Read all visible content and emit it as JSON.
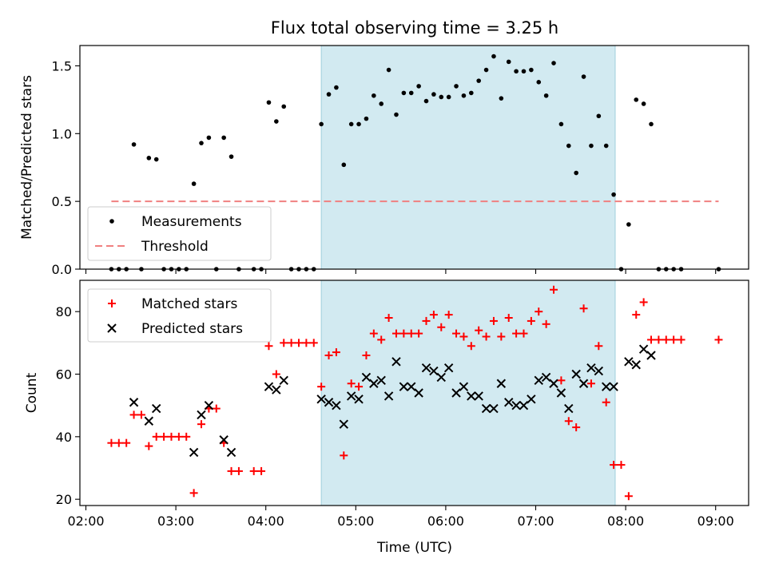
{
  "chart_data": [
    {
      "type": "scatter",
      "title": "Flux total observing time = 3.25 h",
      "xlabel": "",
      "ylabel": "Matched/Predicted stars",
      "xlim": [
        "01:56",
        "09:22"
      ],
      "ylim": [
        0,
        1.65
      ],
      "x_ticks": [
        "02:00",
        "03:00",
        "04:00",
        "05:00",
        "06:00",
        "07:00",
        "08:00",
        "09:00"
      ],
      "y_ticks": [
        0.0,
        0.5,
        1.0,
        1.5
      ],
      "y_tick_labels": [
        "0.0",
        "0.5",
        "1.0",
        "1.5"
      ],
      "shaded_interval": [
        "04:37",
        "07:53"
      ],
      "legend": {
        "position": "lower-left",
        "entries": [
          "Measurements",
          "Threshold"
        ]
      },
      "series": [
        {
          "name": "Measurements",
          "marker": "dot",
          "color": "#000000",
          "points": [
            [
              "02:17",
              0
            ],
            [
              "02:22",
              0
            ],
            [
              "02:27",
              0
            ],
            [
              "02:32",
              0.92
            ],
            [
              "02:37",
              0
            ],
            [
              "02:42",
              0.82
            ],
            [
              "02:47",
              0.81
            ],
            [
              "02:52",
              0
            ],
            [
              "02:57",
              0
            ],
            [
              "03:02",
              0
            ],
            [
              "03:07",
              0
            ],
            [
              "03:12",
              0.63
            ],
            [
              "03:17",
              0.93
            ],
            [
              "03:22",
              0.97
            ],
            [
              "03:27",
              0
            ],
            [
              "03:32",
              0.97
            ],
            [
              "03:37",
              0.83
            ],
            [
              "03:42",
              0
            ],
            [
              "03:52",
              0
            ],
            [
              "03:57",
              0
            ],
            [
              "04:02",
              1.23
            ],
            [
              "04:07",
              1.09
            ],
            [
              "04:12",
              1.2
            ],
            [
              "04:17",
              0
            ],
            [
              "04:22",
              0
            ],
            [
              "04:27",
              0
            ],
            [
              "04:32",
              0
            ],
            [
              "04:37",
              1.07
            ],
            [
              "04:42",
              1.29
            ],
            [
              "04:47",
              1.34
            ],
            [
              "04:52",
              0.77
            ],
            [
              "04:57",
              1.07
            ],
            [
              "05:02",
              1.07
            ],
            [
              "05:07",
              1.11
            ],
            [
              "05:12",
              1.28
            ],
            [
              "05:17",
              1.22
            ],
            [
              "05:22",
              1.47
            ],
            [
              "05:27",
              1.14
            ],
            [
              "05:32",
              1.3
            ],
            [
              "05:37",
              1.3
            ],
            [
              "05:42",
              1.35
            ],
            [
              "05:47",
              1.24
            ],
            [
              "05:52",
              1.29
            ],
            [
              "05:57",
              1.27
            ],
            [
              "06:02",
              1.27
            ],
            [
              "06:07",
              1.35
            ],
            [
              "06:12",
              1.28
            ],
            [
              "06:17",
              1.3
            ],
            [
              "06:22",
              1.39
            ],
            [
              "06:27",
              1.47
            ],
            [
              "06:32",
              1.57
            ],
            [
              "06:37",
              1.26
            ],
            [
              "06:42",
              1.53
            ],
            [
              "06:47",
              1.46
            ],
            [
              "06:52",
              1.46
            ],
            [
              "06:57",
              1.47
            ],
            [
              "07:02",
              1.38
            ],
            [
              "07:07",
              1.28
            ],
            [
              "07:12",
              1.52
            ],
            [
              "07:17",
              1.07
            ],
            [
              "07:22",
              0.91
            ],
            [
              "07:27",
              0.71
            ],
            [
              "07:32",
              1.42
            ],
            [
              "07:37",
              0.91
            ],
            [
              "07:42",
              1.13
            ],
            [
              "07:47",
              0.91
            ],
            [
              "07:52",
              0.55
            ],
            [
              "07:57",
              0
            ],
            [
              "08:02",
              0.33
            ],
            [
              "08:07",
              1.25
            ],
            [
              "08:12",
              1.22
            ],
            [
              "08:17",
              1.07
            ],
            [
              "08:22",
              0
            ],
            [
              "08:27",
              0
            ],
            [
              "08:32",
              0
            ],
            [
              "08:37",
              0
            ],
            [
              "09:02",
              0
            ]
          ]
        },
        {
          "name": "Threshold",
          "style": "dashed",
          "color": "#f08080",
          "points": [
            [
              "02:17",
              0.5
            ],
            [
              "09:02",
              0.5
            ]
          ]
        }
      ]
    },
    {
      "type": "scatter",
      "title": "",
      "xlabel": "Time (UTC)",
      "ylabel": "Count",
      "xlim": [
        "01:56",
        "09:22"
      ],
      "ylim": [
        18,
        90
      ],
      "x_ticks": [
        "02:00",
        "03:00",
        "04:00",
        "05:00",
        "06:00",
        "07:00",
        "08:00",
        "09:00"
      ],
      "y_ticks": [
        20,
        40,
        60,
        80
      ],
      "y_tick_labels": [
        "20",
        "40",
        "60",
        "80"
      ],
      "shaded_interval": [
        "04:37",
        "07:53"
      ],
      "legend": {
        "position": "upper-left",
        "entries": [
          "Matched stars",
          "Predicted stars"
        ]
      },
      "series": [
        {
          "name": "Matched stars",
          "marker": "plus",
          "color": "#ff0000",
          "points": [
            [
              "02:17",
              38
            ],
            [
              "02:22",
              38
            ],
            [
              "02:27",
              38
            ],
            [
              "02:32",
              47
            ],
            [
              "02:37",
              47
            ],
            [
              "02:42",
              37
            ],
            [
              "02:47",
              40
            ],
            [
              "02:52",
              40
            ],
            [
              "02:57",
              40
            ],
            [
              "03:02",
              40
            ],
            [
              "03:07",
              40
            ],
            [
              "03:12",
              22
            ],
            [
              "03:17",
              44
            ],
            [
              "03:22",
              49
            ],
            [
              "03:27",
              49
            ],
            [
              "03:32",
              38
            ],
            [
              "03:37",
              29
            ],
            [
              "03:42",
              29
            ],
            [
              "03:52",
              29
            ],
            [
              "03:57",
              29
            ],
            [
              "04:02",
              69
            ],
            [
              "04:07",
              60
            ],
            [
              "04:12",
              70
            ],
            [
              "04:17",
              70
            ],
            [
              "04:22",
              70
            ],
            [
              "04:27",
              70
            ],
            [
              "04:32",
              70
            ],
            [
              "04:37",
              56
            ],
            [
              "04:42",
              66
            ],
            [
              "04:47",
              67
            ],
            [
              "04:52",
              34
            ],
            [
              "04:57",
              57
            ],
            [
              "05:02",
              56
            ],
            [
              "05:07",
              66
            ],
            [
              "05:12",
              73
            ],
            [
              "05:17",
              71
            ],
            [
              "05:22",
              78
            ],
            [
              "05:27",
              73
            ],
            [
              "05:32",
              73
            ],
            [
              "05:37",
              73
            ],
            [
              "05:42",
              73
            ],
            [
              "05:47",
              77
            ],
            [
              "05:52",
              79
            ],
            [
              "05:57",
              75
            ],
            [
              "06:02",
              79
            ],
            [
              "06:07",
              73
            ],
            [
              "06:12",
              72
            ],
            [
              "06:17",
              69
            ],
            [
              "06:22",
              74
            ],
            [
              "06:27",
              72
            ],
            [
              "06:32",
              77
            ],
            [
              "06:37",
              72
            ],
            [
              "06:42",
              78
            ],
            [
              "06:47",
              73
            ],
            [
              "06:52",
              73
            ],
            [
              "06:57",
              77
            ],
            [
              "07:02",
              80
            ],
            [
              "07:07",
              76
            ],
            [
              "07:12",
              87
            ],
            [
              "07:17",
              58
            ],
            [
              "07:22",
              45
            ],
            [
              "07:27",
              43
            ],
            [
              "07:32",
              81
            ],
            [
              "07:37",
              57
            ],
            [
              "07:42",
              69
            ],
            [
              "07:47",
              51
            ],
            [
              "07:52",
              31
            ],
            [
              "07:57",
              31
            ],
            [
              "08:02",
              21
            ],
            [
              "08:07",
              79
            ],
            [
              "08:12",
              83
            ],
            [
              "08:17",
              71
            ],
            [
              "08:22",
              71
            ],
            [
              "08:27",
              71
            ],
            [
              "08:32",
              71
            ],
            [
              "08:37",
              71
            ],
            [
              "09:02",
              71
            ]
          ]
        },
        {
          "name": "Predicted stars",
          "marker": "x",
          "color": "#000000",
          "points": [
            [
              "02:32",
              51
            ],
            [
              "02:42",
              45
            ],
            [
              "02:47",
              49
            ],
            [
              "03:12",
              35
            ],
            [
              "03:17",
              47
            ],
            [
              "03:22",
              50
            ],
            [
              "03:32",
              39
            ],
            [
              "03:37",
              35
            ],
            [
              "04:02",
              56
            ],
            [
              "04:07",
              55
            ],
            [
              "04:12",
              58
            ],
            [
              "04:37",
              52
            ],
            [
              "04:42",
              51
            ],
            [
              "04:47",
              50
            ],
            [
              "04:52",
              44
            ],
            [
              "04:57",
              53
            ],
            [
              "05:02",
              52
            ],
            [
              "05:07",
              59
            ],
            [
              "05:12",
              57
            ],
            [
              "05:17",
              58
            ],
            [
              "05:22",
              53
            ],
            [
              "05:27",
              64
            ],
            [
              "05:32",
              56
            ],
            [
              "05:37",
              56
            ],
            [
              "05:42",
              54
            ],
            [
              "05:47",
              62
            ],
            [
              "05:52",
              61
            ],
            [
              "05:57",
              59
            ],
            [
              "06:02",
              62
            ],
            [
              "06:07",
              54
            ],
            [
              "06:12",
              56
            ],
            [
              "06:17",
              53
            ],
            [
              "06:22",
              53
            ],
            [
              "06:27",
              49
            ],
            [
              "06:32",
              49
            ],
            [
              "06:37",
              57
            ],
            [
              "06:42",
              51
            ],
            [
              "06:47",
              50
            ],
            [
              "06:52",
              50
            ],
            [
              "06:57",
              52
            ],
            [
              "07:02",
              58
            ],
            [
              "07:07",
              59
            ],
            [
              "07:12",
              57
            ],
            [
              "07:17",
              54
            ],
            [
              "07:22",
              49
            ],
            [
              "07:27",
              60
            ],
            [
              "07:32",
              57
            ],
            [
              "07:37",
              62
            ],
            [
              "07:42",
              61
            ],
            [
              "07:47",
              56
            ],
            [
              "07:52",
              56
            ],
            [
              "08:02",
              64
            ],
            [
              "08:07",
              63
            ],
            [
              "08:12",
              68
            ],
            [
              "08:17",
              66
            ]
          ]
        }
      ]
    }
  ],
  "colors": {
    "shade": "#add8e6",
    "measurements": "#000000",
    "threshold": "#f08080",
    "matched": "#ff0000",
    "predicted": "#000000"
  }
}
